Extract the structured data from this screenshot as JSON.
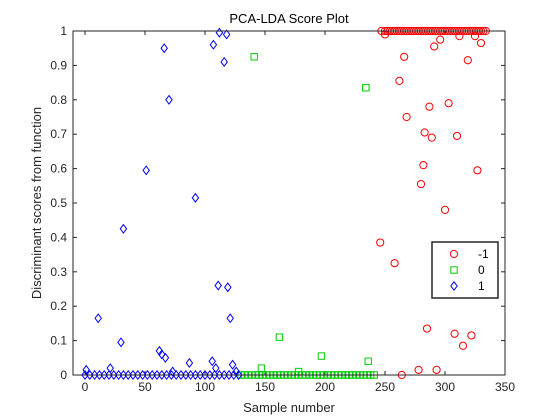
{
  "chart_data": {
    "type": "scatter",
    "title": "PCA-LDA Score Plot",
    "xlabel": "Sample number",
    "ylabel": "Discriminant scores from function",
    "xlim": [
      -10,
      350
    ],
    "ylim": [
      0,
      1
    ],
    "xticks": [
      "0",
      "50",
      "100",
      "150",
      "200",
      "250",
      "300",
      "350"
    ],
    "yticks": [
      "0",
      "0.1",
      "0.2",
      "0.3",
      "0.4",
      "0.5",
      "0.6",
      "0.7",
      "0.8",
      "0.9",
      "1"
    ],
    "grid": false,
    "legend_position": "right",
    "series": [
      {
        "name": "-1",
        "marker": "circle",
        "color": "#ff0000",
        "x": [
          247,
          250,
          252,
          254,
          256,
          258,
          260,
          262,
          264,
          266,
          268,
          270,
          272,
          274,
          276,
          278,
          280,
          282,
          284,
          286,
          288,
          290,
          292,
          294,
          296,
          298,
          300,
          302,
          304,
          306,
          308,
          310,
          312,
          314,
          316,
          318,
          320,
          322,
          324,
          326,
          328,
          330,
          332,
          334,
          246,
          250,
          258,
          262,
          264,
          266,
          268,
          278,
          280,
          282,
          283,
          285,
          287,
          289,
          291,
          293,
          296,
          300,
          303,
          308,
          310,
          312,
          315,
          319,
          322,
          325,
          327,
          330
        ],
        "y": [
          1,
          1,
          1,
          1,
          1,
          1,
          1,
          1,
          1,
          1,
          1,
          1,
          1,
          1,
          1,
          1,
          1,
          1,
          1,
          1,
          1,
          1,
          1,
          1,
          1,
          1,
          1,
          1,
          1,
          1,
          1,
          1,
          1,
          1,
          1,
          1,
          1,
          1,
          1,
          1,
          1,
          1,
          1,
          1,
          0.385,
          0.99,
          0.325,
          0.855,
          0.0,
          0.925,
          0.75,
          0.015,
          0.555,
          0.61,
          0.705,
          0.135,
          0.78,
          0.69,
          0.955,
          0.015,
          0.975,
          0.48,
          0.79,
          0.12,
          0.695,
          0.985,
          0.085,
          0.915,
          0.115,
          0.985,
          0.595,
          0.965
        ]
      },
      {
        "name": "0",
        "marker": "square",
        "color": "#00cc00",
        "x": [
          130,
          133,
          136,
          139,
          142,
          145,
          148,
          151,
          154,
          157,
          160,
          163,
          166,
          169,
          172,
          175,
          178,
          181,
          184,
          187,
          190,
          193,
          196,
          199,
          202,
          205,
          208,
          211,
          214,
          217,
          220,
          223,
          226,
          229,
          232,
          235,
          238,
          241,
          141,
          147,
          162,
          178,
          197,
          234,
          236
        ],
        "y": [
          0,
          0,
          0,
          0,
          0,
          0,
          0,
          0,
          0,
          0,
          0,
          0,
          0,
          0,
          0,
          0,
          0,
          0,
          0,
          0,
          0,
          0,
          0,
          0,
          0,
          0,
          0,
          0,
          0,
          0,
          0,
          0,
          0,
          0,
          0,
          0,
          0,
          0,
          0.925,
          0.02,
          0.11,
          0.01,
          0.055,
          0.835,
          0.04
        ]
      },
      {
        "name": "1",
        "marker": "diamond",
        "color": "#0000ff",
        "x": [
          0,
          4,
          8,
          12,
          16,
          20,
          24,
          28,
          32,
          36,
          40,
          44,
          48,
          52,
          56,
          60,
          64,
          68,
          72,
          76,
          80,
          84,
          88,
          92,
          96,
          100,
          104,
          108,
          112,
          116,
          120,
          124,
          128,
          1,
          11,
          21,
          30,
          32,
          51,
          62,
          64,
          66,
          67,
          70,
          73,
          87,
          92,
          106,
          107,
          109,
          111,
          112,
          116,
          118,
          119,
          121,
          123,
          126
        ],
        "y": [
          0,
          0,
          0,
          0,
          0,
          0,
          0,
          0,
          0,
          0,
          0,
          0,
          0,
          0,
          0,
          0,
          0,
          0,
          0,
          0,
          0,
          0,
          0,
          0,
          0,
          0,
          0,
          0,
          0,
          0,
          0,
          0,
          0,
          0.015,
          0.165,
          0.02,
          0.095,
          0.425,
          0.595,
          0.07,
          0.06,
          0.95,
          0.05,
          0.8,
          0.01,
          0.035,
          0.515,
          0.04,
          0.96,
          0.02,
          0.26,
          0.995,
          0.91,
          0.99,
          0.255,
          0.165,
          0.03,
          0.01
        ]
      }
    ]
  }
}
